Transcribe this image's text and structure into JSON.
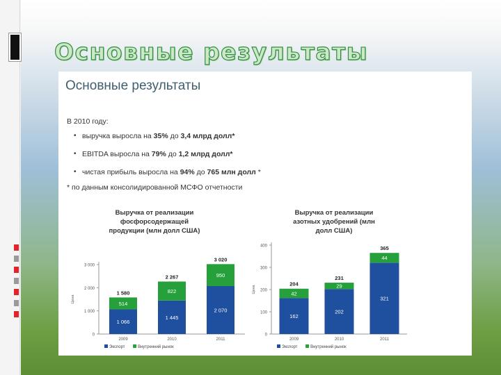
{
  "slide": {
    "title": "Основные результаты"
  },
  "panel": {
    "heading": "Основные результаты",
    "intro": "В 2010 году:",
    "bullets": [
      {
        "pre": "выручка выросла на ",
        "b1": "35%",
        "mid": " до ",
        "b2": "3,4 млрд долл*",
        "post": ""
      },
      {
        "pre": "EBITDA выросла на ",
        "b1": "79%",
        "mid": " до ",
        "b2": "1,2 млрд долл*",
        "post": ""
      },
      {
        "pre": "чистая прибыль выросла на ",
        "b1": "94%",
        "mid": " до ",
        "b2": "765 млн долл",
        "post": " *"
      }
    ],
    "footnote": "* по данным консолидированной МСФО отчетности"
  },
  "colors": {
    "export": "#1f4f9f",
    "domestic": "#25a03a",
    "title_outline": "#2e8f3d"
  },
  "chart_data": [
    {
      "type": "bar",
      "stacked": true,
      "title": "Выручка от реализации фосфорсодержащей продукции (млн долл США)",
      "categories": [
        "2009",
        "2010",
        "2011"
      ],
      "series": [
        {
          "name": "Экспорт",
          "values": [
            1066,
            1445,
            2070
          ]
        },
        {
          "name": "Внутренний рынок",
          "values": [
            514,
            822,
            950
          ]
        }
      ],
      "totals": [
        "1 580",
        "2 267",
        "3 020"
      ],
      "value_labels": [
        [
          "1 066",
          "1 445",
          "2 070"
        ],
        [
          "514",
          "822",
          "950"
        ]
      ],
      "ylim": [
        0,
        3000
      ],
      "yticks": [
        0,
        1000,
        2000,
        3000
      ],
      "ytick_labels": [
        "0",
        "1 000",
        "2 000",
        "3 000"
      ],
      "ylabel": "Цена",
      "legend_position": "bottom"
    },
    {
      "type": "bar",
      "stacked": true,
      "title": "Выручка от реализации азотных удобрений (млн долл США)",
      "categories": [
        "2009",
        "2010",
        "2011"
      ],
      "series": [
        {
          "name": "Экспорт",
          "values": [
            162,
            202,
            321
          ]
        },
        {
          "name": "Внутренний рынок",
          "values": [
            42,
            29,
            44
          ]
        }
      ],
      "totals": [
        "204",
        "231",
        "365"
      ],
      "value_labels": [
        [
          "162",
          "202",
          "321"
        ],
        [
          "42",
          "29",
          "44"
        ]
      ],
      "ylim": [
        0,
        400
      ],
      "yticks": [
        0,
        100,
        200,
        300,
        400
      ],
      "ytick_labels": [
        "0",
        "100",
        "200",
        "300",
        "400"
      ],
      "ylabel": "Цена",
      "legend_position": "bottom"
    }
  ]
}
